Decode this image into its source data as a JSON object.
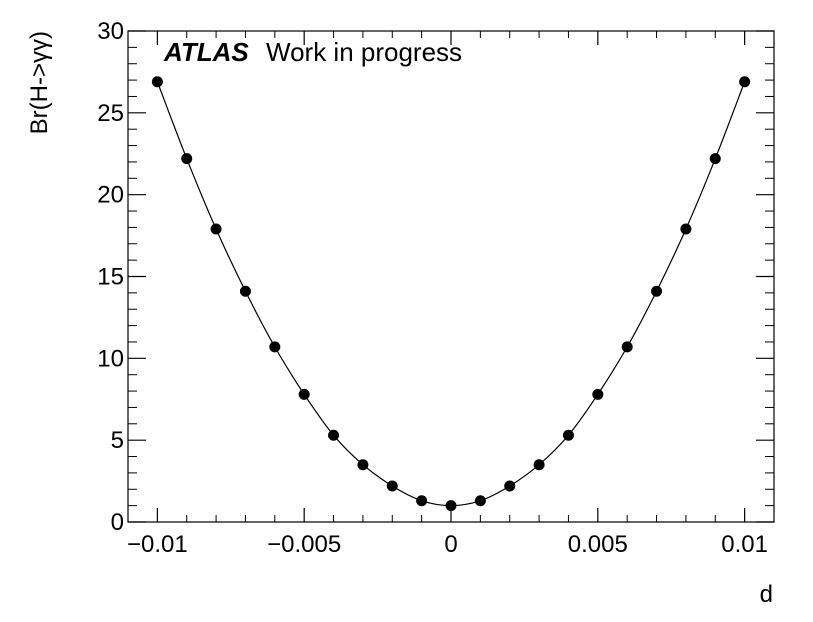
{
  "chart_data": {
    "type": "scatter",
    "xlabel": "d",
    "ylabel": "Br(H->γγ)",
    "atlas_label": "ATLAS",
    "status_label": "Work in progress",
    "xlim": [
      -0.011,
      0.011
    ],
    "ylim": [
      0,
      30
    ],
    "x_ticks": [
      {
        "value": -0.01,
        "label": "−0.01"
      },
      {
        "value": -0.005,
        "label": "−0.005"
      },
      {
        "value": 0,
        "label": "0"
      },
      {
        "value": 0.005,
        "label": "0.005"
      },
      {
        "value": 0.01,
        "label": "0.01"
      }
    ],
    "y_ticks": [
      {
        "value": 0,
        "label": "0"
      },
      {
        "value": 5,
        "label": "5"
      },
      {
        "value": 10,
        "label": "10"
      },
      {
        "value": 15,
        "label": "15"
      },
      {
        "value": 20,
        "label": "20"
      },
      {
        "value": 25,
        "label": "25"
      },
      {
        "value": 30,
        "label": "30"
      }
    ],
    "grid": false,
    "series": [
      {
        "x": [
          -0.01,
          -0.009,
          -0.008,
          -0.007,
          -0.006,
          -0.005,
          -0.004,
          -0.003,
          -0.002,
          -0.001,
          0,
          0.001,
          0.002,
          0.003,
          0.004,
          0.005,
          0.006,
          0.007,
          0.008,
          0.009,
          0.01
        ],
        "y": [
          26.9,
          22.2,
          17.9,
          14.1,
          10.7,
          7.8,
          5.3,
          3.5,
          2.2,
          1.3,
          1.0,
          1.3,
          2.2,
          3.5,
          5.3,
          7.8,
          10.7,
          14.1,
          17.9,
          22.2,
          26.9
        ]
      }
    ]
  }
}
